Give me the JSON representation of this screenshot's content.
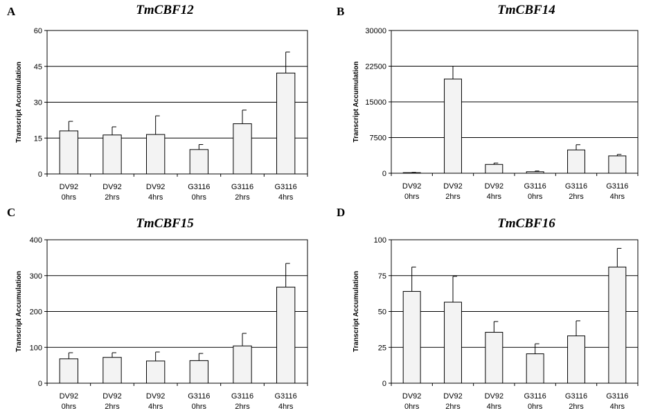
{
  "chart_data": [
    {
      "type": "bar",
      "panel": "A",
      "title": "TmCBF12",
      "ylabel": "Transcript Accumulation",
      "categories": [
        [
          "DV92",
          "0hrs"
        ],
        [
          "DV92",
          "2hrs"
        ],
        [
          "DV92",
          "4hrs"
        ],
        [
          "G3116",
          "0hrs"
        ],
        [
          "G3116",
          "2hrs"
        ],
        [
          "G3116",
          "4hrs"
        ]
      ],
      "values": [
        18,
        16.3,
        16.5,
        10.2,
        21,
        42.2
      ],
      "errors": [
        4,
        3.4,
        7.8,
        2.1,
        5.7,
        8.8
      ],
      "ylim": [
        0,
        60
      ],
      "yticks": [
        0,
        15,
        30,
        45,
        60
      ],
      "grid": true
    },
    {
      "type": "bar",
      "panel": "B",
      "title": "TmCBF14",
      "ylabel": "Transcript Accumulation",
      "categories": [
        [
          "DV92",
          "0hrs"
        ],
        [
          "DV92",
          "2hrs"
        ],
        [
          "DV92",
          "4hrs"
        ],
        [
          "G3116",
          "0hrs"
        ],
        [
          "G3116",
          "2hrs"
        ],
        [
          "G3116",
          "4hrs"
        ]
      ],
      "values": [
        120,
        19800,
        1850,
        320,
        4900,
        3650
      ],
      "errors": [
        60,
        2700,
        300,
        150,
        1100,
        300
      ],
      "ylim": [
        0,
        30000
      ],
      "yticks": [
        0,
        7500,
        15000,
        22500,
        30000
      ],
      "grid": true
    },
    {
      "type": "bar",
      "panel": "C",
      "title": "TmCBF15",
      "ylabel": "Transcript Accumulation",
      "categories": [
        [
          "DV92",
          "0hrs"
        ],
        [
          "DV92",
          "2hrs"
        ],
        [
          "DV92",
          "4hrs"
        ],
        [
          "G3116",
          "0hrs"
        ],
        [
          "G3116",
          "2hrs"
        ],
        [
          "G3116",
          "4hrs"
        ]
      ],
      "values": [
        68,
        72,
        62,
        63,
        104,
        268
      ],
      "errors": [
        17,
        13,
        25,
        20,
        35,
        66
      ],
      "ylim": [
        0,
        400
      ],
      "yticks": [
        0,
        100,
        200,
        300,
        400
      ],
      "grid": true
    },
    {
      "type": "bar",
      "panel": "D",
      "title": "TmCBF16",
      "ylabel": "Transcript Accumulation",
      "categories": [
        [
          "DV92",
          "0hrs"
        ],
        [
          "DV92",
          "2hrs"
        ],
        [
          "DV92",
          "4hrs"
        ],
        [
          "G3116",
          "0hrs"
        ],
        [
          "G3116",
          "2hrs"
        ],
        [
          "G3116",
          "4hrs"
        ]
      ],
      "values": [
        64,
        56.5,
        35.5,
        20.5,
        33,
        81
      ],
      "errors": [
        17,
        18,
        7.5,
        7,
        10.5,
        13
      ],
      "ylim": [
        0,
        100
      ],
      "yticks": [
        0,
        25,
        50,
        75,
        100
      ],
      "grid": true
    }
  ],
  "colors": {
    "bar_fill": "#f3f3f3",
    "stroke": "#000000"
  }
}
